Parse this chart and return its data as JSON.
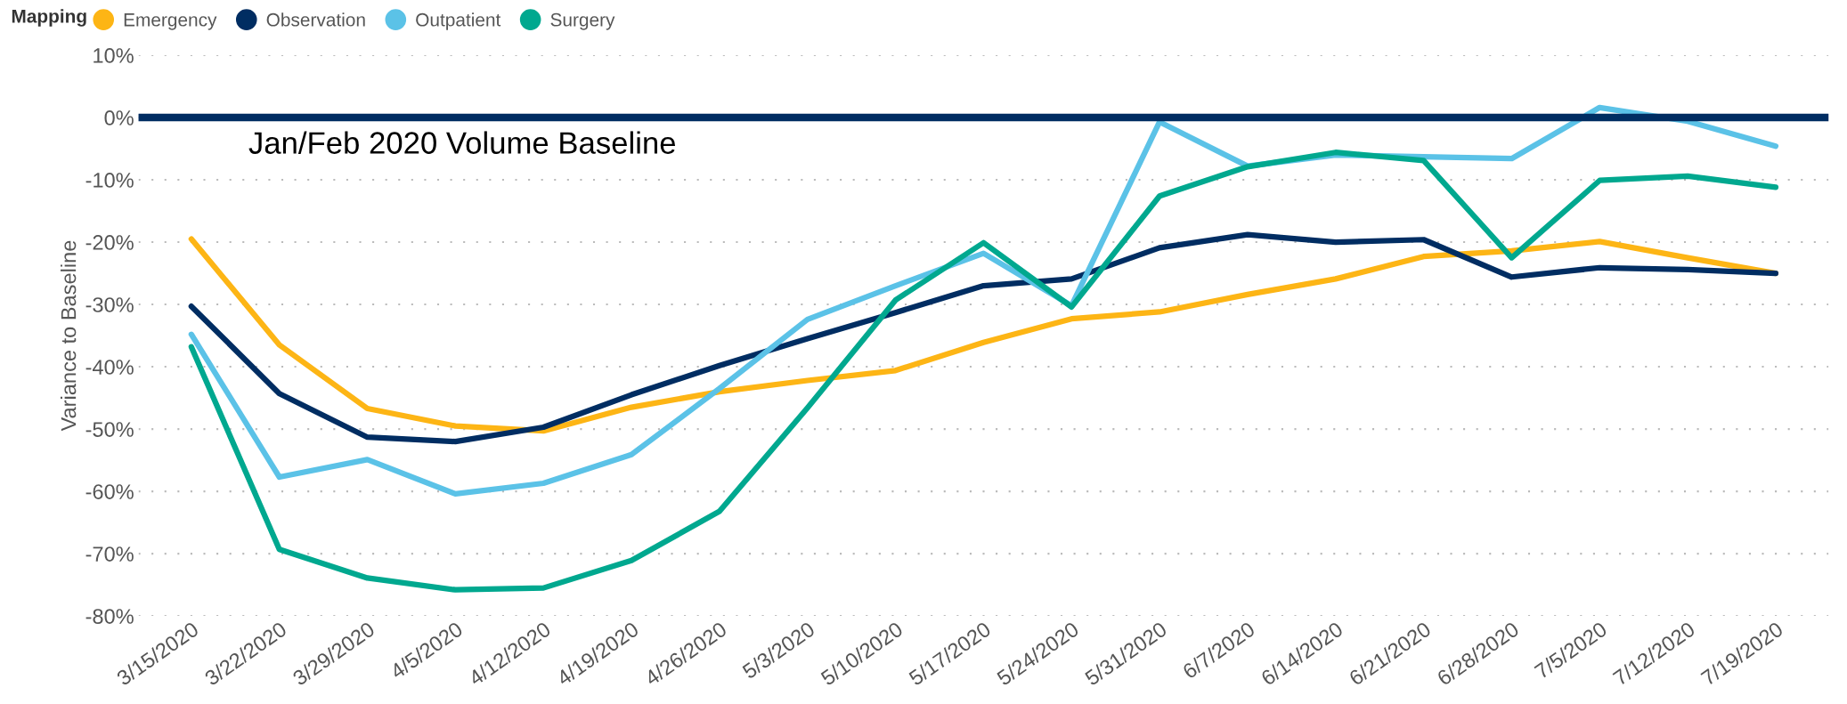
{
  "chart_data": {
    "type": "line",
    "ylabel": "Variance to Baseline",
    "legend_title": "Mapping",
    "categories": [
      "3/15/2020",
      "3/22/2020",
      "3/29/2020",
      "4/5/2020",
      "4/12/2020",
      "4/19/2020",
      "4/26/2020",
      "5/3/2020",
      "5/10/2020",
      "5/17/2020",
      "5/24/2020",
      "5/31/2020",
      "6/7/2020",
      "6/14/2020",
      "6/21/2020",
      "6/28/2020",
      "7/5/2020",
      "7/12/2020",
      "7/19/2020"
    ],
    "series": [
      {
        "name": "Emergency",
        "color": "#fdb515",
        "values": [
          -19.5,
          -36.5,
          -46.7,
          -49.5,
          -50.3,
          -46.5,
          -44,
          -42.2,
          -40.6,
          -36.1,
          -32.3,
          -31.2,
          -28.4,
          -25.9,
          -22.3,
          -21.4,
          -19.9,
          -22.5,
          -25
        ]
      },
      {
        "name": "Observation",
        "color": "#002d62",
        "values": [
          -30.3,
          -44.3,
          -51.3,
          -52,
          -49.7,
          -44.5,
          -39.8,
          -35.5,
          -31.3,
          -27,
          -25.9,
          -20.9,
          -18.8,
          -20,
          -19.6,
          -25.6,
          -24.1,
          -24.4,
          -25
        ]
      },
      {
        "name": "Outpatient",
        "color": "#5bc2e7",
        "values": [
          -34.8,
          -57.7,
          -54.9,
          -60.4,
          -58.7,
          -54.1,
          -43.5,
          -32.4,
          -27,
          -21.8,
          -30.2,
          -0.7,
          -7.8,
          -6,
          -6.3,
          -6.6,
          1.6,
          -0.6,
          -4.6
        ]
      },
      {
        "name": "Surgery",
        "color": "#00a88f",
        "values": [
          -36.8,
          -69.3,
          -73.9,
          -75.8,
          -75.5,
          -71.1,
          -63.2,
          -46.6,
          -29.3,
          -20.1,
          -30.4,
          -12.6,
          -7.9,
          -5.6,
          -6.9,
          -22.5,
          -10.1,
          -9.4,
          -11.2
        ]
      }
    ],
    "ylim": [
      -80,
      10
    ],
    "yticks": [
      {
        "value": 10,
        "label": "10%"
      },
      {
        "value": 0,
        "label": "0%"
      },
      {
        "value": -10,
        "label": "-10%"
      },
      {
        "value": -20,
        "label": "-20%"
      },
      {
        "value": -30,
        "label": "-30%"
      },
      {
        "value": -40,
        "label": "-40%"
      },
      {
        "value": -50,
        "label": "-50%"
      },
      {
        "value": -60,
        "label": "-60%"
      },
      {
        "value": -70,
        "label": "-70%"
      },
      {
        "value": -80,
        "label": "-80%"
      }
    ],
    "ref_lines": [
      {
        "axis": "y",
        "value": 0,
        "label": "Jan/Feb 2020 Volume Baseline",
        "color": "#002d62",
        "line_style": "solid"
      }
    ],
    "grid": "y",
    "legend": "top left",
    "marker": "none",
    "line_style": "solid"
  }
}
